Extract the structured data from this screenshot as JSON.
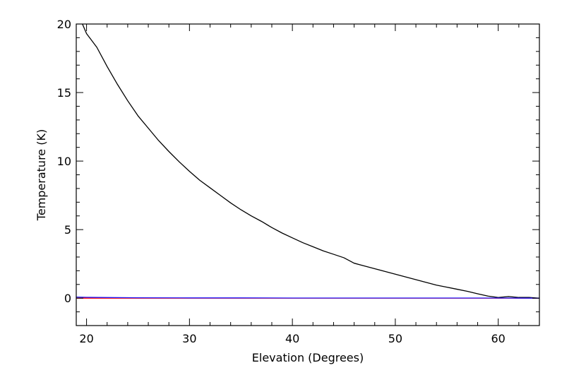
{
  "chart_data": {
    "type": "line",
    "title": "",
    "xlabel": "Elevation (Degrees)",
    "ylabel": "Temperature (K)",
    "xlim": [
      19,
      64
    ],
    "ylim": [
      -2,
      20
    ],
    "x_ticks": [
      20,
      30,
      40,
      50,
      60
    ],
    "y_ticks": [
      0,
      5,
      10,
      15,
      20
    ],
    "x_minor_step": 2,
    "y_minor_step": 1,
    "grid": false,
    "legend": "none",
    "series": [
      {
        "color": "#000000",
        "x": [
          19.6,
          20.0,
          21.0,
          22.0,
          23.0,
          24.0,
          25.0,
          26.0,
          27.0,
          28.0,
          29.0,
          30.0,
          31.0,
          32.0,
          33.0,
          34.0,
          35.0,
          36.0,
          37.0,
          38.0,
          39.0,
          40.0,
          41.0,
          42.0,
          43.0,
          44.0,
          45.0,
          46.0,
          47.0,
          48.0,
          49.0,
          50.0,
          51.0,
          52.0,
          53.0,
          54.0,
          55.0,
          56.0,
          57.0,
          58.0,
          59.0,
          60.0,
          61.0,
          62.0,
          63.0,
          64.0
        ],
        "y": [
          20.0,
          19.3,
          18.3,
          16.9,
          15.6,
          14.4,
          13.3,
          12.4,
          11.5,
          10.7,
          9.95,
          9.25,
          8.6,
          8.05,
          7.5,
          6.95,
          6.45,
          6.0,
          5.6,
          5.15,
          4.75,
          4.4,
          4.05,
          3.75,
          3.45,
          3.2,
          2.95,
          2.55,
          2.35,
          2.15,
          1.95,
          1.75,
          1.55,
          1.35,
          1.15,
          0.95,
          0.8,
          0.65,
          0.5,
          0.32,
          0.15,
          0.05,
          0.12,
          0.05,
          0.05,
          0.0
        ]
      },
      {
        "color": "#ff0000",
        "x": [
          19,
          25,
          30,
          35,
          40,
          45,
          50,
          55,
          60,
          64
        ],
        "y": [
          0.0,
          0.0,
          0.0,
          0.0,
          0.0,
          0.0,
          0.0,
          0.0,
          0.0,
          0.0
        ]
      },
      {
        "color": "#1a1aff",
        "x": [
          19,
          20,
          25,
          30,
          35,
          40,
          45,
          50,
          55,
          60,
          64
        ],
        "y": [
          0.08,
          0.06,
          0.03,
          0.02,
          0.02,
          0.01,
          0.01,
          0.01,
          0.01,
          0.01,
          0.0
        ]
      }
    ]
  }
}
